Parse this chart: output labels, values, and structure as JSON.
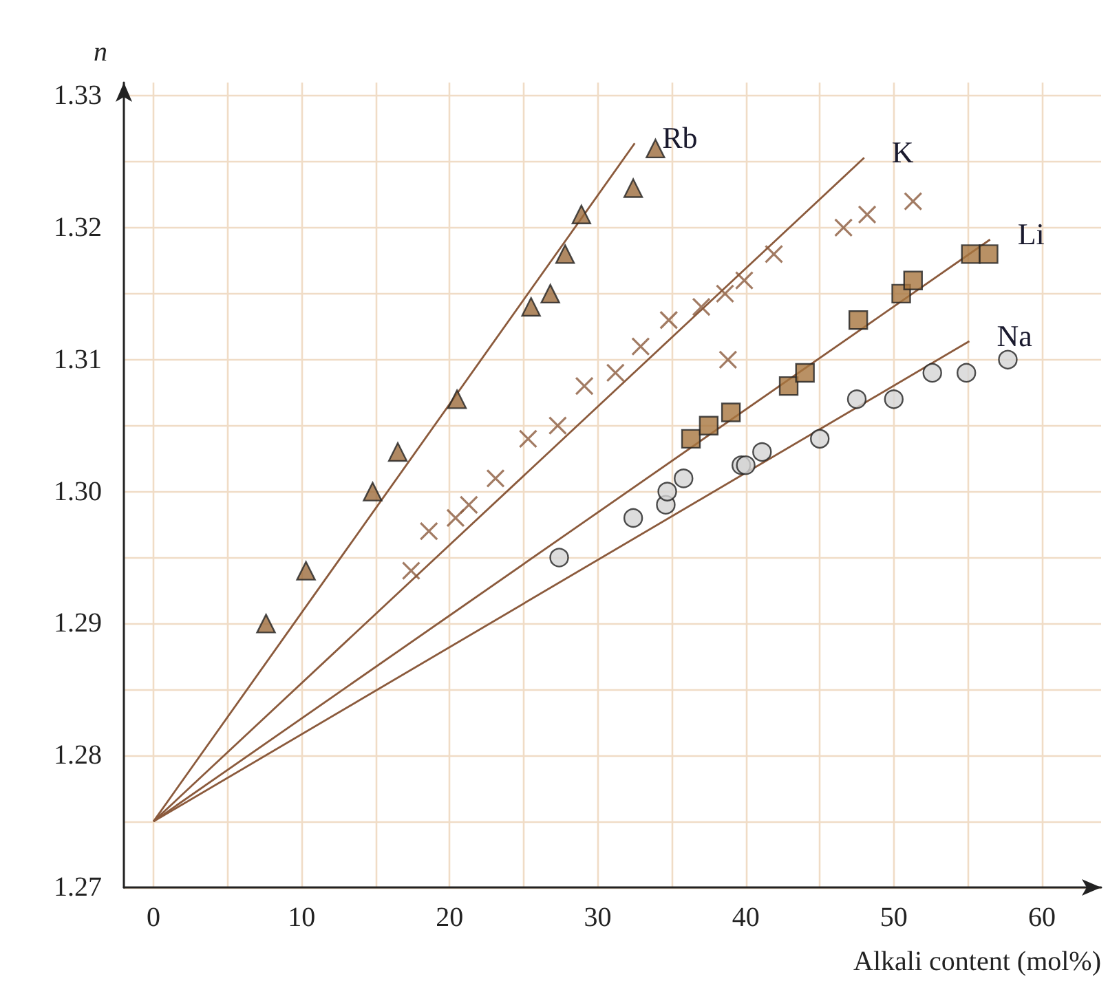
{
  "chart_data": {
    "type": "scatter",
    "xlabel": "Alkali content (mol%)",
    "ylabel": "n",
    "xlim": [
      -2,
      64
    ],
    "ylim": [
      1.27,
      1.331
    ],
    "xticks": [
      0,
      {
        "value": 5,
        "label": null
      },
      10,
      {
        "value": 15,
        "label": null
      },
      20,
      {
        "value": 25,
        "label": null
      },
      30,
      {
        "value": 35,
        "label": null
      },
      40,
      {
        "value": 45,
        "label": null
      },
      50,
      {
        "value": 55,
        "label": null
      },
      60
    ],
    "yticks": [
      {
        "value": 1.27,
        "label": "1.27"
      },
      {
        "value": 1.275,
        "label": null
      },
      {
        "value": 1.28,
        "label": "1.28"
      },
      {
        "value": 1.285,
        "label": null
      },
      {
        "value": 1.29,
        "label": "1.29"
      },
      {
        "value": 1.295,
        "label": null
      },
      {
        "value": 1.3,
        "label": "1.30"
      },
      {
        "value": 1.305,
        "label": null
      },
      {
        "value": 1.31,
        "label": "1.31"
      },
      {
        "value": 1.315,
        "label": null
      },
      {
        "value": 1.32,
        "label": "1.32"
      },
      {
        "value": 1.325,
        "label": null
      },
      {
        "value": 1.33,
        "label": "1.33"
      }
    ],
    "grid": true,
    "legend": false,
    "series": [
      {
        "marker": "triangle",
        "color": "#9c6b3c",
        "x": [
          7.6,
          10.3,
          14.8,
          16.5,
          20.5,
          25.5,
          26.8,
          27.8,
          28.9,
          32.4,
          33.9
        ],
        "values": [
          1.29,
          1.294,
          1.3,
          1.303,
          1.307,
          1.314,
          1.315,
          1.318,
          1.321,
          1.323,
          1.326
        ]
      },
      {
        "marker": "cross",
        "color": "#8b5a3c",
        "x": [
          17.4,
          18.6,
          20.4,
          21.3,
          23.1,
          25.3,
          27.3,
          29.1,
          31.2,
          32.9,
          34.8,
          37.0,
          38.6,
          39.9,
          38.8,
          41.9,
          46.6,
          48.2,
          51.3
        ],
        "values": [
          1.294,
          1.297,
          1.298,
          1.299,
          1.301,
          1.304,
          1.305,
          1.308,
          1.309,
          1.311,
          1.313,
          1.314,
          1.315,
          1.316,
          1.31,
          1.318,
          1.32,
          1.321,
          1.322
        ]
      },
      {
        "marker": "square",
        "color": "#a8763f",
        "x": [
          36.3,
          37.5,
          39.0,
          42.9,
          44.0,
          47.6,
          50.5,
          51.3,
          55.2,
          56.4
        ],
        "values": [
          1.304,
          1.305,
          1.306,
          1.308,
          1.309,
          1.313,
          1.315,
          1.316,
          1.318,
          1.318
        ]
      },
      {
        "marker": "circle",
        "color": "#d4d4d4",
        "x": [
          27.4,
          32.4,
          34.6,
          34.7,
          35.8,
          39.7,
          40.0,
          41.1,
          45.0,
          47.5,
          50.0,
          52.6,
          54.9,
          57.7
        ],
        "values": [
          1.295,
          1.298,
          1.299,
          1.3,
          1.301,
          1.302,
          1.302,
          1.303,
          1.304,
          1.307,
          1.307,
          1.309,
          1.309,
          1.31
        ]
      },
      {
        "name": "Rb",
        "type": "line",
        "marker": "none",
        "color": "#8b5a3c",
        "x": [
          0,
          32.5
        ],
        "values": [
          1.275,
          1.3264
        ]
      },
      {
        "name": "K",
        "type": "line",
        "marker": "none",
        "color": "#8b5a3c",
        "x": [
          0,
          48.0
        ],
        "values": [
          1.275,
          1.3253
        ]
      },
      {
        "name": "Li",
        "type": "line",
        "marker": "none",
        "color": "#8b5a3c",
        "x": [
          0,
          56.5
        ],
        "values": [
          1.275,
          1.3191
        ]
      },
      {
        "name": "Na",
        "type": "line",
        "marker": "none",
        "color": "#8b5a3c",
        "x": [
          0,
          55.1
        ],
        "values": [
          1.275,
          1.3114
        ]
      }
    ]
  }
}
